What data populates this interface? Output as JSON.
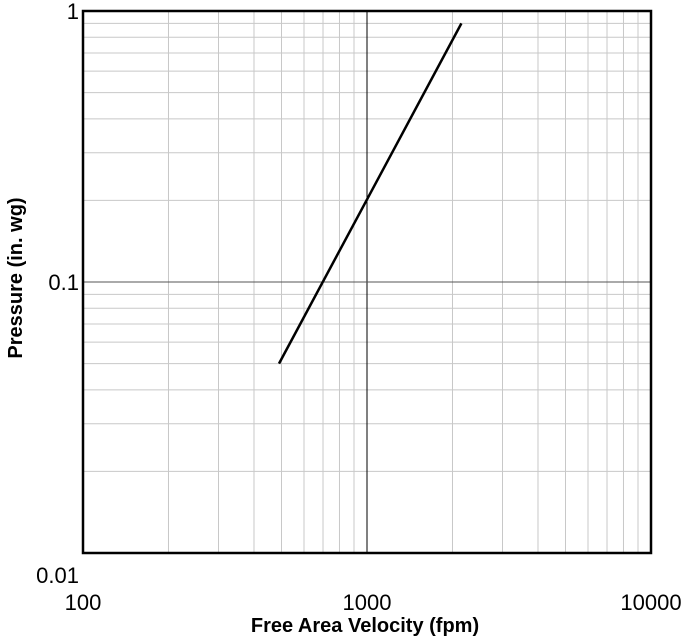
{
  "chart_data": {
    "type": "line",
    "title": "",
    "xlabel": "Free Area Velocity (fpm)",
    "ylabel": "Pressure (in. wg)",
    "x_scale": "log",
    "y_scale": "log",
    "xlim": [
      100,
      10000
    ],
    "ylim": [
      0.01,
      1
    ],
    "x_tick_labels": [
      "100",
      "1000",
      "10000"
    ],
    "y_tick_labels": [
      "0.01",
      "0.1",
      "1"
    ],
    "grid": true,
    "legend": "none",
    "series": [
      {
        "x": [
          490,
          2150
        ],
        "y": [
          0.05,
          0.9
        ]
      }
    ]
  }
}
